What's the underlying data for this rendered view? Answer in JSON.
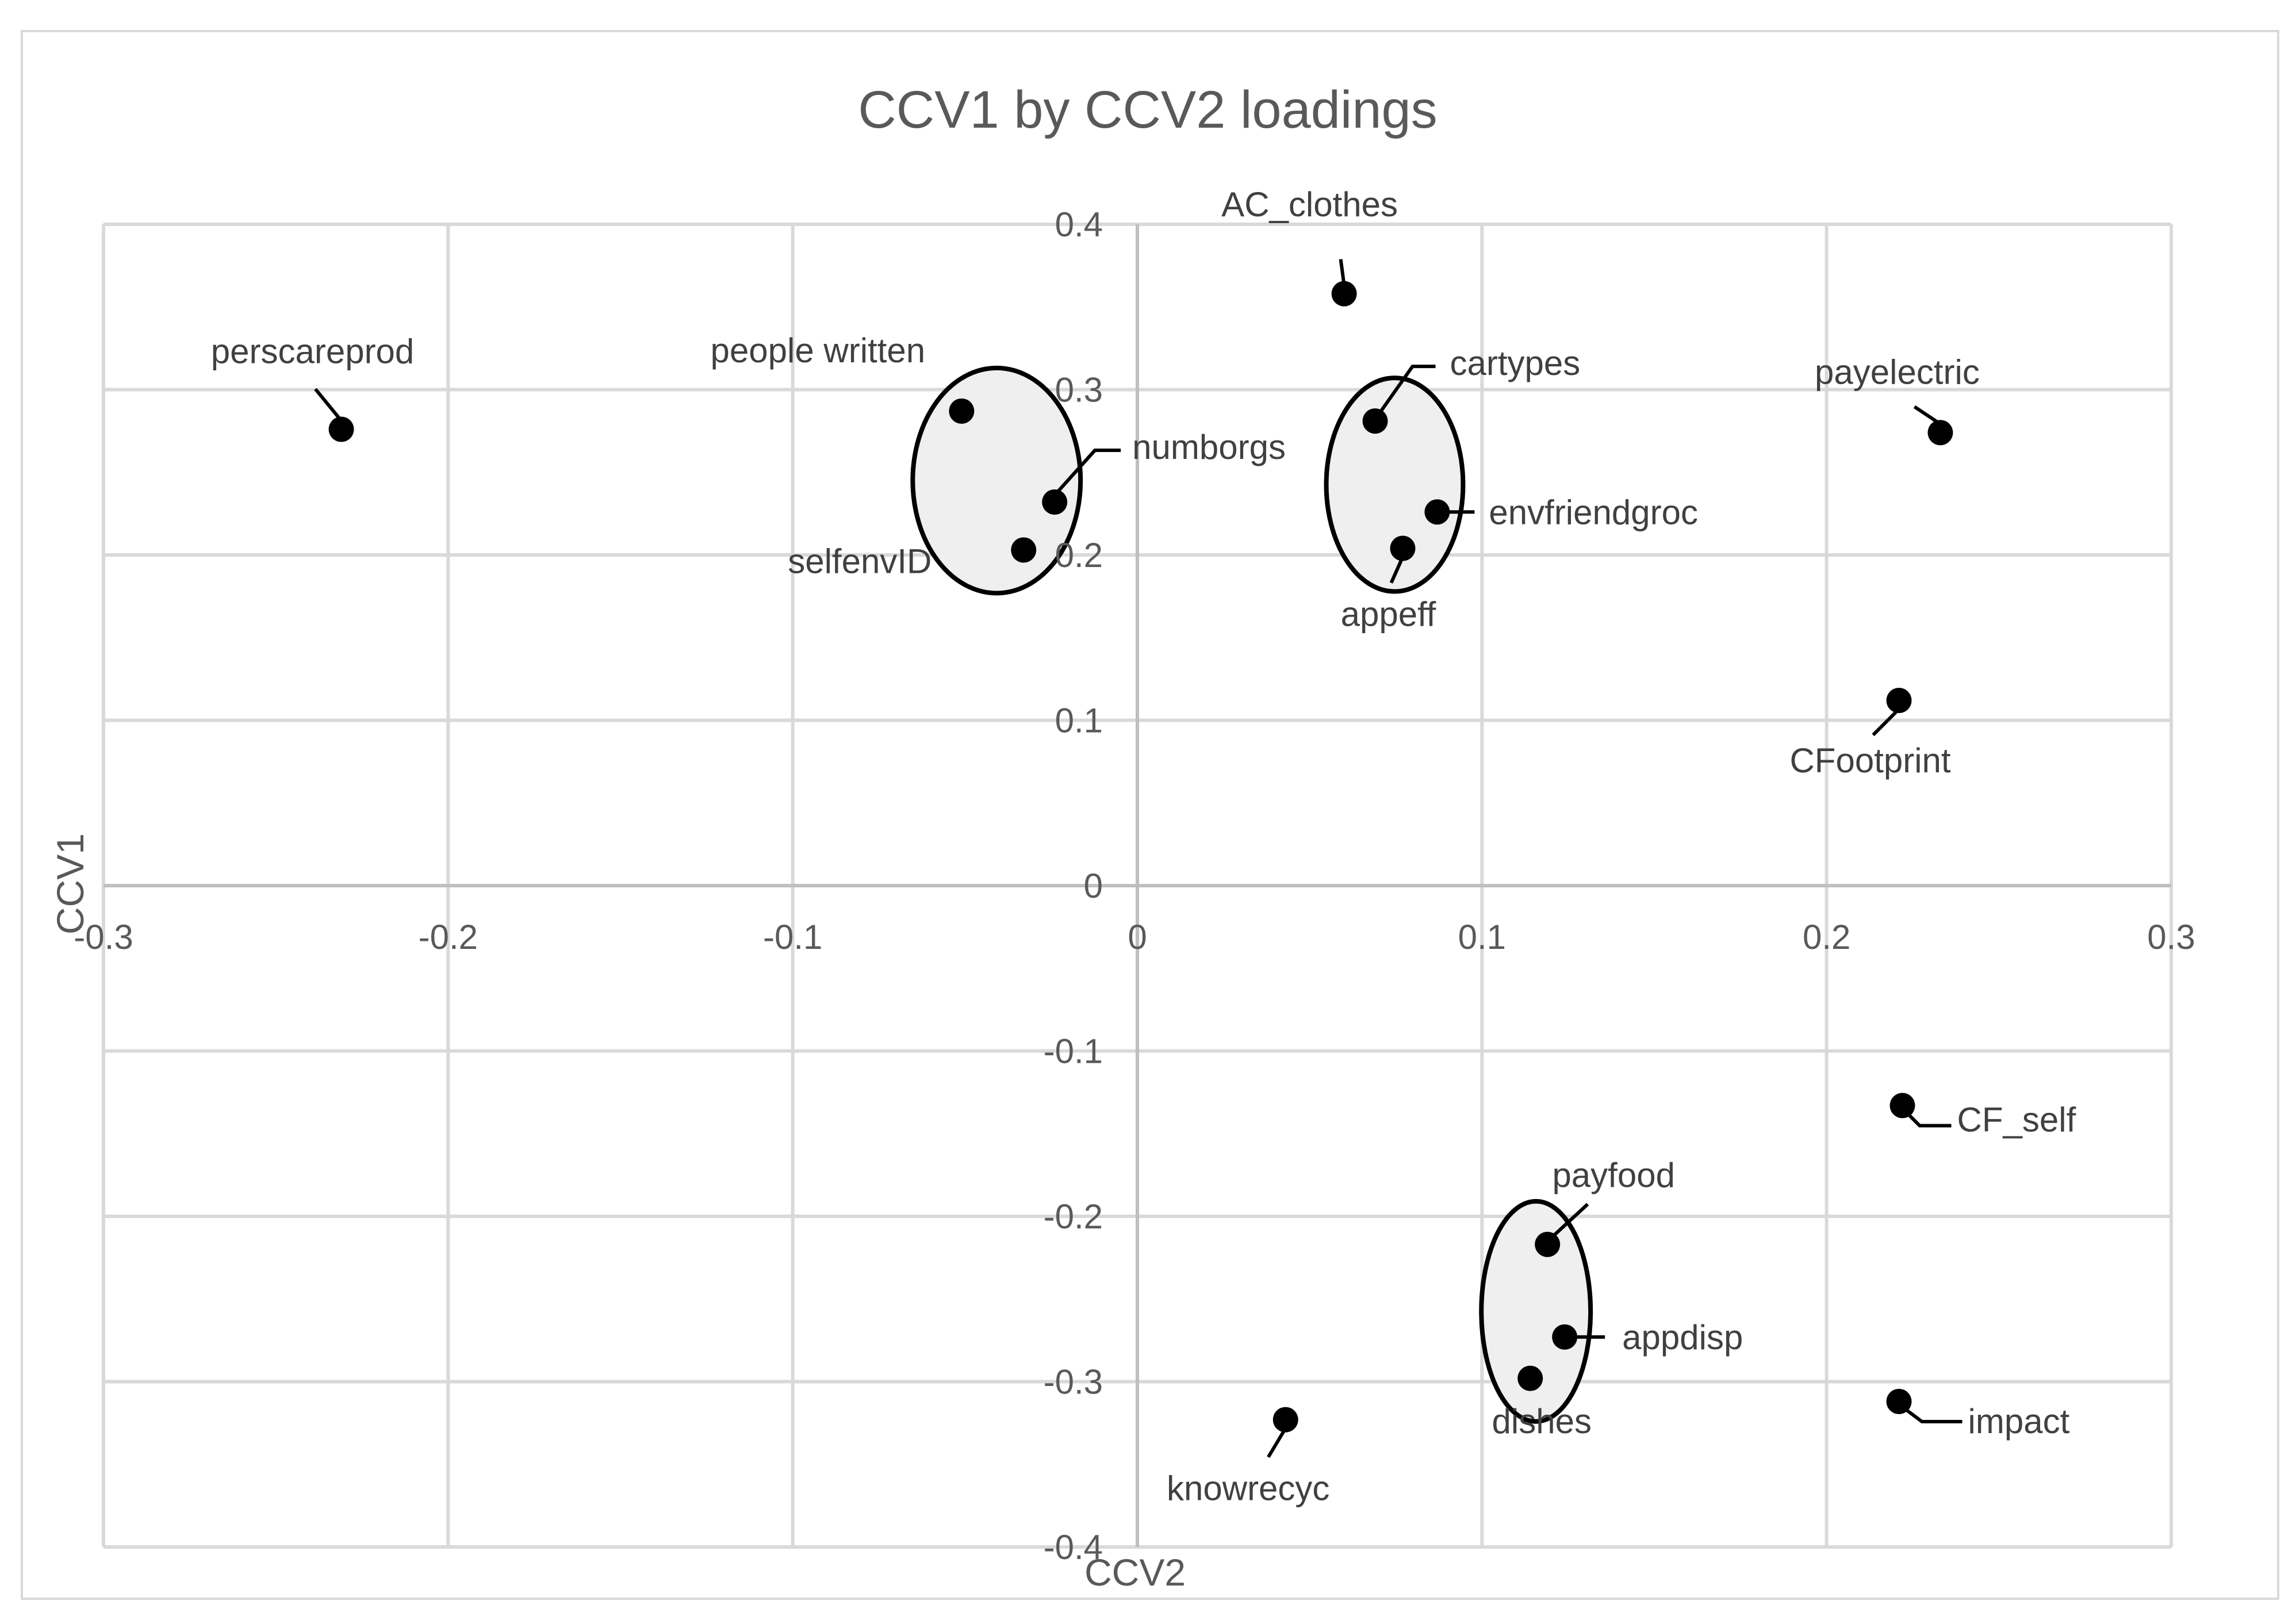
{
  "chart_data": {
    "type": "scatter",
    "title": "CCV1 by CCV2 loadings",
    "xlabel": "CCV2",
    "ylabel": "CCV1",
    "xlim": [
      -0.3,
      0.3
    ],
    "ylim": [
      -0.4,
      0.4
    ],
    "x_ticks": [
      -0.3,
      -0.2,
      -0.1,
      0,
      0.1,
      0.2,
      0.3
    ],
    "y_ticks": [
      -0.4,
      -0.3,
      -0.2,
      -0.1,
      0,
      0.1,
      0.2,
      0.3,
      0.4
    ],
    "x_tick_labels": [
      "-0.3",
      "-0.2",
      "-0.1",
      "0",
      "0.1",
      "0.2",
      "0.3"
    ],
    "y_tick_labels": [
      "-0.4",
      "-0.3",
      "-0.2",
      "-0.1",
      "0",
      "0.1",
      "0.2",
      "0.3",
      "0.4"
    ],
    "grid": true,
    "points": [
      {
        "label": "AC_clothes",
        "x": 0.06,
        "y": 0.358
      },
      {
        "label": "perscareprod",
        "x": -0.231,
        "y": 0.276
      },
      {
        "label": "people written",
        "x": -0.051,
        "y": 0.287
      },
      {
        "label": "numborgs",
        "x": -0.024,
        "y": 0.232
      },
      {
        "label": "selfenvID",
        "x": -0.033,
        "y": 0.203
      },
      {
        "label": "cartypes",
        "x": 0.069,
        "y": 0.281
      },
      {
        "label": "envfriendgroc",
        "x": 0.087,
        "y": 0.226
      },
      {
        "label": "appeff",
        "x": 0.077,
        "y": 0.204
      },
      {
        "label": "payelectric",
        "x": 0.233,
        "y": 0.274
      },
      {
        "label": "CFootprint",
        "x": 0.221,
        "y": 0.112
      },
      {
        "label": "CF_self",
        "x": 0.222,
        "y": -0.133
      },
      {
        "label": "payfood",
        "x": 0.119,
        "y": -0.217
      },
      {
        "label": "appdisp",
        "x": 0.124,
        "y": -0.273
      },
      {
        "label": "dishes",
        "x": 0.114,
        "y": -0.298
      },
      {
        "label": "knowrecyc",
        "x": 0.043,
        "y": -0.323
      },
      {
        "label": "impact",
        "x": 0.221,
        "y": -0.312
      }
    ],
    "clusters": [
      [
        "people written",
        "numborgs",
        "selfenvID"
      ],
      [
        "cartypes",
        "envfriendgroc",
        "appeff"
      ],
      [
        "payfood",
        "appdisp",
        "dishes"
      ]
    ]
  }
}
